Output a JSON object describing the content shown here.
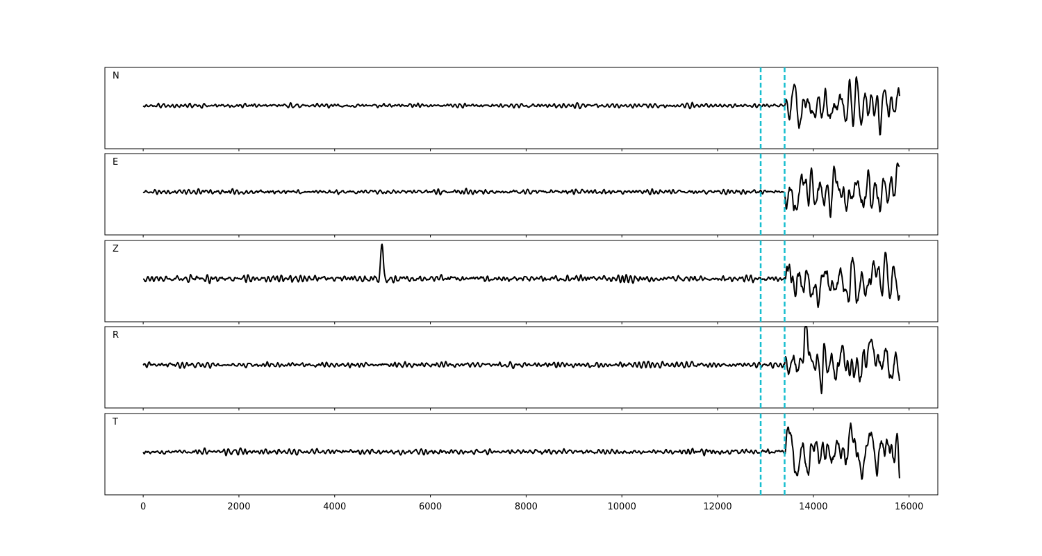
{
  "chart_data": {
    "type": "line",
    "title": "",
    "xlabel": "",
    "ylabel": "",
    "xlim": [
      -800,
      16600
    ],
    "x_ticks": [
      0,
      2000,
      4000,
      6000,
      8000,
      10000,
      12000,
      14000,
      16000
    ],
    "x_tick_labels": [
      "0",
      "2000",
      "4000",
      "6000",
      "8000",
      "10000",
      "12000",
      "14000",
      "16000"
    ],
    "sample_range": [
      0,
      15800
    ],
    "vertical_markers": {
      "color": "#17becf",
      "style": "dashed",
      "x": [
        12900,
        13400
      ]
    },
    "grid": false,
    "legend": "none",
    "panels": [
      {
        "label": "N",
        "seed": 11,
        "noise_amp": 0.32,
        "post_amp": 0.85,
        "spike": [
          15400,
          -1.0
        ]
      },
      {
        "label": "E",
        "seed": 23,
        "noise_amp": 0.3,
        "post_amp": 0.8,
        "spike": [
          13850,
          1.0
        ]
      },
      {
        "label": "Z",
        "seed": 37,
        "noise_amp": 0.45,
        "post_amp": 0.85,
        "spike": [
          4990,
          1.0
        ]
      },
      {
        "label": "R",
        "seed": 41,
        "noise_amp": 0.32,
        "post_amp": 0.8,
        "spike": [
          13850,
          1.0
        ]
      },
      {
        "label": "T",
        "seed": 53,
        "noise_amp": 0.35,
        "post_amp": 0.85,
        "spike": [
          13900,
          -1.0
        ]
      }
    ]
  }
}
